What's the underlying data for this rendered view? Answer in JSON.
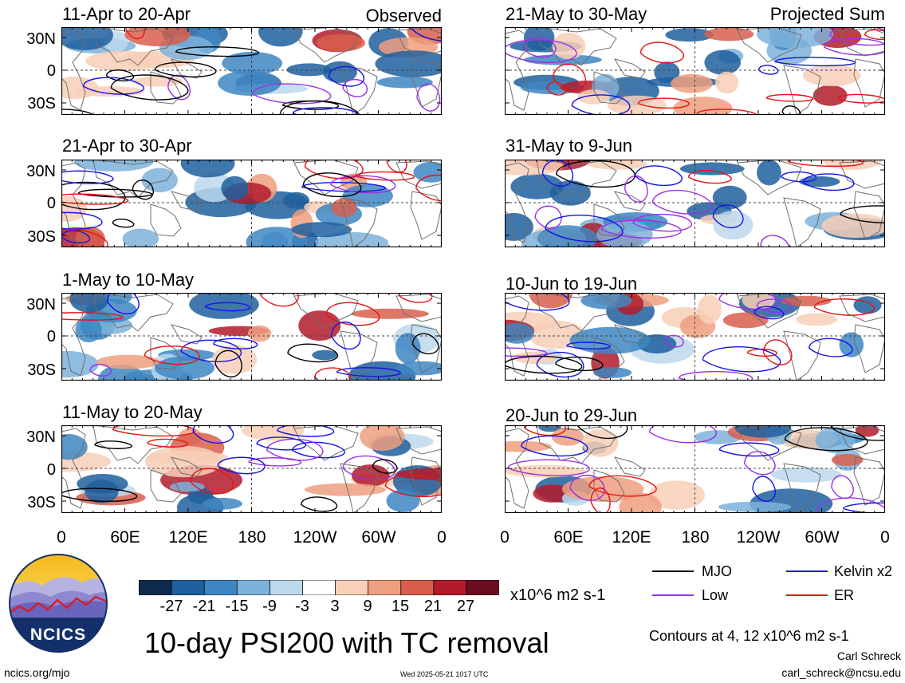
{
  "header": {
    "observed_label": "Observed",
    "projected_label": "Projected Sum"
  },
  "panels": {
    "left": [
      {
        "title": "11-Apr to 20-Apr"
      },
      {
        "title": "21-Apr to 30-Apr"
      },
      {
        "title": "1-May to 10-May"
      },
      {
        "title": "11-May to 20-May"
      }
    ],
    "right": [
      {
        "title": "21-May to 30-May"
      },
      {
        "title": "31-May to 9-Jun"
      },
      {
        "title": "10-Jun to 19-Jun"
      },
      {
        "title": "20-Jun to 29-Jun"
      }
    ]
  },
  "axes": {
    "lat_ticks": [
      "30N",
      "0",
      "30S"
    ],
    "lon_ticks": [
      "0",
      "60E",
      "120E",
      "180",
      "120W",
      "60W",
      "0"
    ]
  },
  "colorbar": {
    "ticks": [
      "-27",
      "-21",
      "-15",
      "-9",
      "-3",
      "3",
      "9",
      "15",
      "21",
      "27"
    ],
    "units": "x10^6 m2 s-1",
    "colors": [
      "#0c2b4e",
      "#1f5f9e",
      "#3e86c2",
      "#7db2da",
      "#bcd8ec",
      "#ffffff",
      "#f8cfb7",
      "#ee9f7f",
      "#d85f4c",
      "#b31b2c",
      "#6a0d1f"
    ]
  },
  "legend": {
    "items": [
      {
        "label": "MJO",
        "color": "#000000"
      },
      {
        "label": "Kelvin x2",
        "color": "#1414e6"
      },
      {
        "label": "Low",
        "color": "#9b30e6"
      },
      {
        "label": "ER",
        "color": "#e61414"
      }
    ],
    "contours_note": "Contours at 4, 12 x10^6 m2 s-1"
  },
  "logo": {
    "text": "NCICS"
  },
  "title": "10-day PSI200 with TC removal",
  "footer": {
    "url": "ncics.org/mjo",
    "timestamp": "Wed 2025-05-21 1017 UTC",
    "author": "Carl Schreck",
    "email": "carl_schreck@ncsu.edu"
  }
}
